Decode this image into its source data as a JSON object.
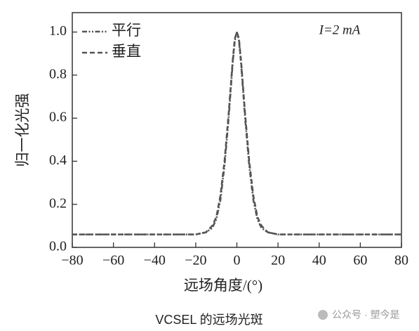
{
  "chart_data": {
    "type": "line",
    "x": [
      -80,
      -60,
      -40,
      -20,
      -15,
      -12,
      -10,
      -8,
      -6,
      -4,
      -2,
      -1,
      0,
      1,
      2,
      4,
      6,
      8,
      10,
      12,
      15,
      20,
      40,
      60,
      80
    ],
    "series": [
      {
        "name": "平行",
        "color": "#555555",
        "line_style": "dash-dot-dot",
        "values": [
          0.06,
          0.06,
          0.06,
          0.06,
          0.07,
          0.09,
          0.13,
          0.22,
          0.38,
          0.6,
          0.86,
          0.96,
          1.0,
          0.96,
          0.86,
          0.6,
          0.38,
          0.22,
          0.13,
          0.09,
          0.07,
          0.06,
          0.06,
          0.06,
          0.06
        ]
      },
      {
        "name": "垂直",
        "color": "#555555",
        "line_style": "dashed",
        "values": [
          0.06,
          0.06,
          0.06,
          0.06,
          0.07,
          0.1,
          0.14,
          0.24,
          0.4,
          0.62,
          0.87,
          0.97,
          1.0,
          0.97,
          0.87,
          0.62,
          0.4,
          0.24,
          0.14,
          0.1,
          0.07,
          0.06,
          0.06,
          0.06,
          0.06
        ]
      }
    ],
    "annotation": "I=2 mA",
    "xlabel": "远场角度/(°)",
    "ylabel": "归一化光强",
    "caption": "VCSEL 的远场光斑",
    "watermark": "公众号 · 塑今是",
    "xlim": [
      -80,
      80
    ],
    "ylim": [
      0,
      1.09
    ],
    "xticks": [
      {
        "value": -80,
        "label": "−80"
      },
      {
        "value": -60,
        "label": "−60"
      },
      {
        "value": -40,
        "label": "−40"
      },
      {
        "value": -20,
        "label": "−20"
      },
      0,
      20,
      40,
      60,
      80
    ],
    "yticks": [
      {
        "value": 0,
        "label": "0.0"
      },
      0.2,
      0.4,
      0.6,
      0.8,
      {
        "value": 1,
        "label": "1.0"
      }
    ],
    "legend": "upper left"
  }
}
